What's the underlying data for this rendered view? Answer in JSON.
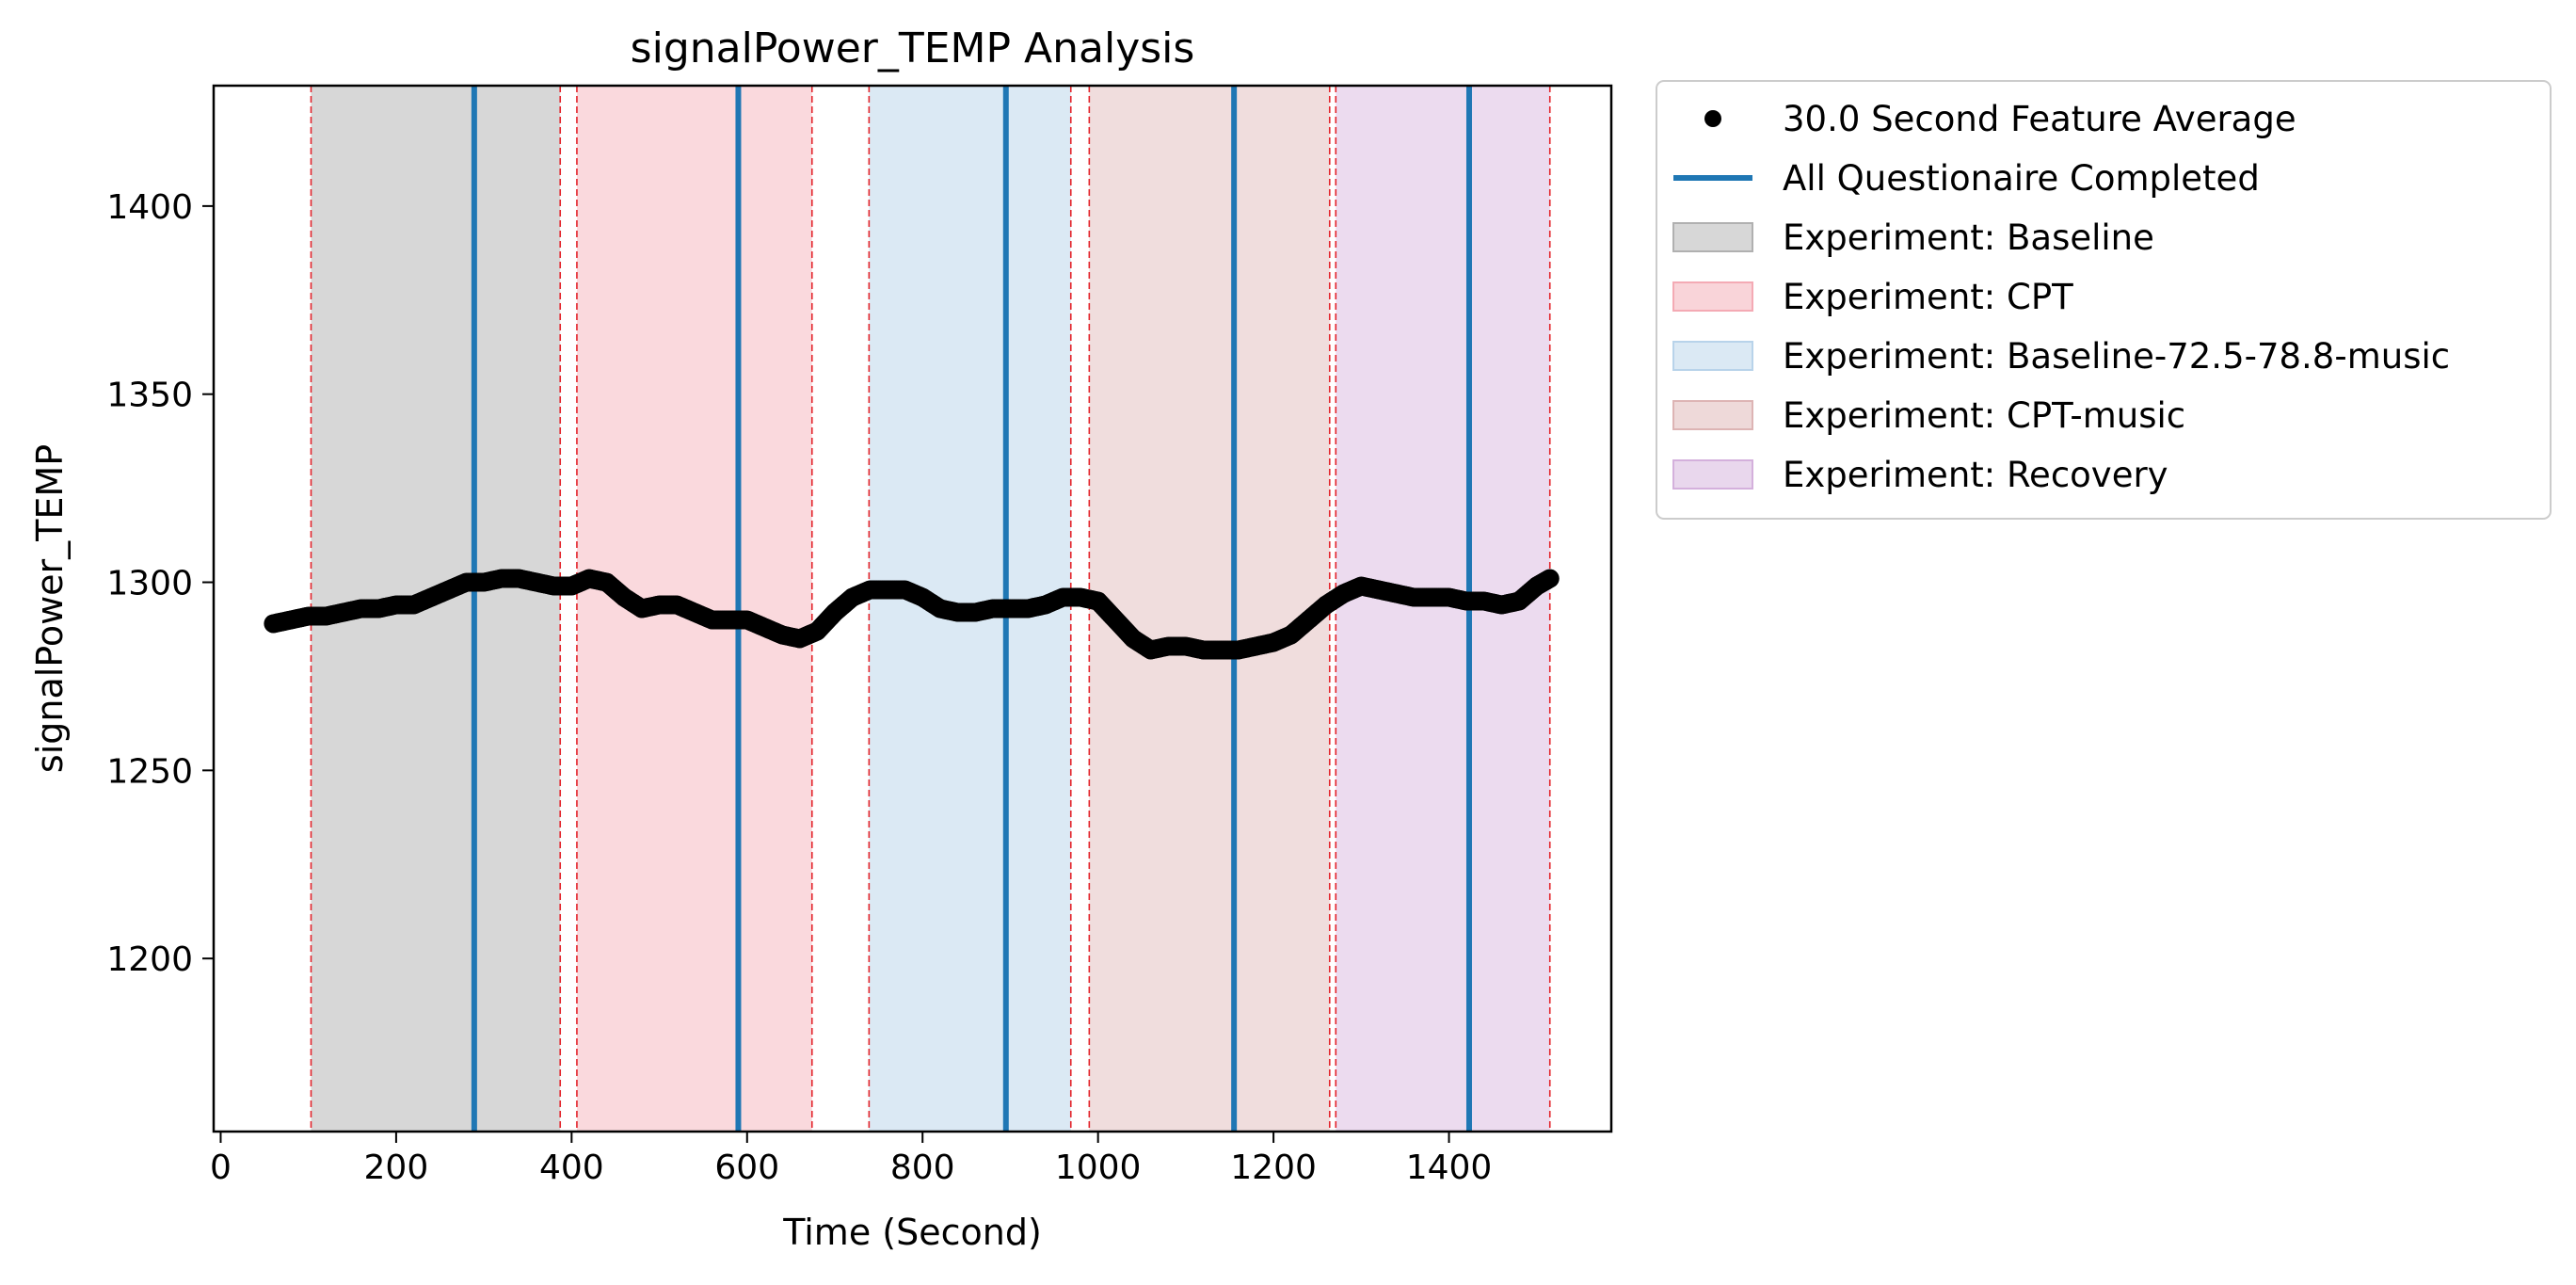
{
  "chart_data": {
    "type": "scatter",
    "title": "signalPower_TEMP Analysis",
    "xlabel": "Time (Second)",
    "ylabel": "signalPower_TEMP",
    "xlim": [
      -8,
      1585
    ],
    "ylim": [
      1154,
      1432
    ],
    "xticks": [
      0,
      200,
      400,
      600,
      800,
      1000,
      1200,
      1400
    ],
    "yticks": [
      1200,
      1250,
      1300,
      1350,
      1400
    ],
    "grid": false,
    "legend_position": "outside-top-right",
    "legend": [
      {
        "label": "30.0 Second Feature Average",
        "kind": "marker",
        "color": "#000000"
      },
      {
        "label": "All Questionaire Completed",
        "kind": "line",
        "color": "#1f77b4"
      },
      {
        "label": "Experiment: Baseline",
        "kind": "patch",
        "color": "#b0b0b0"
      },
      {
        "label": "Experiment: CPT",
        "kind": "patch",
        "color": "#f4aab4"
      },
      {
        "label": "Experiment: Baseline-72.5-78.8-music",
        "kind": "patch",
        "color": "#b8d3ea"
      },
      {
        "label": "Experiment: CPT-music",
        "kind": "patch",
        "color": "#ddb4b4"
      },
      {
        "label": "Experiment: Recovery",
        "kind": "patch",
        "color": "#d4b0dc"
      }
    ],
    "phases": [
      {
        "name": "Experiment: Baseline",
        "start": 103,
        "end": 387,
        "color": "#b0b0b0",
        "opacity": 0.5
      },
      {
        "name": "Experiment: CPT",
        "start": 406,
        "end": 674,
        "color": "#f4aab4",
        "opacity": 0.45
      },
      {
        "name": "Experiment: Baseline-72.5-78.8-music",
        "start": 739,
        "end": 969,
        "color": "#b8d3ea",
        "opacity": 0.5
      },
      {
        "name": "Experiment: CPT-music",
        "start": 990,
        "end": 1264,
        "color": "#ddb4b4",
        "opacity": 0.45
      },
      {
        "name": "Experiment: Recovery",
        "start": 1271,
        "end": 1515,
        "color": "#d4b0dc",
        "opacity": 0.45
      }
    ],
    "phase_boundaries": [
      103,
      387,
      406,
      674,
      739,
      969,
      990,
      1264,
      1271,
      1515
    ],
    "questionnaire_completed": [
      289,
      590,
      895,
      1155,
      1423
    ],
    "series": [
      {
        "name": "30.0 Second Feature Average",
        "x": [
          60,
          80,
          100,
          120,
          140,
          160,
          180,
          200,
          220,
          240,
          260,
          280,
          300,
          320,
          340,
          360,
          380,
          400,
          420,
          440,
          460,
          480,
          500,
          520,
          540,
          560,
          580,
          600,
          620,
          640,
          660,
          680,
          700,
          720,
          740,
          760,
          780,
          800,
          820,
          840,
          860,
          880,
          900,
          920,
          940,
          960,
          980,
          1000,
          1020,
          1040,
          1060,
          1080,
          1100,
          1120,
          1140,
          1160,
          1180,
          1200,
          1220,
          1240,
          1260,
          1280,
          1300,
          1320,
          1340,
          1360,
          1380,
          1400,
          1420,
          1440,
          1460,
          1480,
          1500,
          1515
        ],
        "y": [
          1289,
          1290,
          1291,
          1291,
          1292,
          1293,
          1293,
          1294,
          1294,
          1296,
          1298,
          1300,
          1300,
          1301,
          1301,
          1300,
          1299,
          1299,
          1301,
          1300,
          1296,
          1293,
          1294,
          1294,
          1292,
          1290,
          1290,
          1290,
          1288,
          1286,
          1285,
          1287,
          1292,
          1296,
          1298,
          1298,
          1298,
          1296,
          1293,
          1292,
          1292,
          1293,
          1293,
          1293,
          1294,
          1296,
          1296,
          1295,
          1290,
          1285,
          1282,
          1283,
          1283,
          1282,
          1282,
          1282,
          1283,
          1284,
          1286,
          1290,
          1294,
          1297,
          1299,
          1298,
          1297,
          1296,
          1296,
          1296,
          1295,
          1295,
          1294,
          1295,
          1299,
          1301
        ]
      }
    ]
  }
}
